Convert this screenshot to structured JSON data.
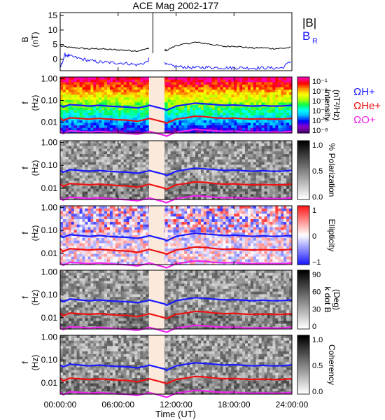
{
  "chart_data": {
    "type": "spectrogram",
    "title": "ACE Mag 2002-177",
    "xlabel": "Time (UT)",
    "xticks": [
      "00:00:00",
      "06:00:00",
      "12:00:00",
      "18:00:00",
      "24:00:00"
    ],
    "xlim_hours": [
      0,
      24
    ],
    "gap_hours": [
      9.2,
      10.8
    ],
    "spike_hour": 9.6,
    "series_colors": {
      "B": "#000000",
      "BR": "#1a1aff",
      "H": "#1a1aff",
      "He": "#ee1111",
      "O": "#ee22ee"
    },
    "panels": [
      {
        "kind": "line",
        "ylabel": "B",
        "yunit": "(nT)",
        "ylim": [
          -4,
          16
        ],
        "yticks": [
          "15",
          "10",
          "5",
          "0"
        ],
        "ytick_values": [
          15,
          10,
          5,
          0
        ],
        "legend": [
          "|B|",
          "B"
        ],
        "legend_sub": "R",
        "series": [
          {
            "name": "|B|",
            "color": "#000000",
            "x": [
              0,
              1,
              2,
              3,
              4,
              5,
              6,
              7,
              8,
              9,
              9.5,
              10,
              10.5,
              11,
              12,
              13,
              14,
              15,
              16,
              17,
              18,
              19,
              20,
              21,
              22,
              23,
              24
            ],
            "y": [
              4.5,
              4.0,
              3.8,
              3.5,
              3.6,
              3.3,
              3.2,
              3.0,
              2.8,
              3.5,
              4.5,
              4.0,
              3.5,
              3.0,
              4.6,
              5.2,
              5.8,
              5.4,
              4.9,
              4.3,
              4.5,
              4.1,
              3.8,
              3.9,
              3.6,
              3.7,
              4.0
            ]
          },
          {
            "name": "BR",
            "color": "#1a1aff",
            "x": [
              0,
              0.5,
              1,
              2,
              3,
              4,
              5,
              6,
              7,
              8,
              9,
              9.5,
              10,
              10.5,
              11,
              12,
              13,
              14,
              15,
              16,
              17,
              18,
              19,
              20,
              21,
              22,
              23,
              24
            ],
            "y": [
              -3,
              1.5,
              1.0,
              0.2,
              -0.5,
              -1.0,
              -1.2,
              -1.3,
              -1.5,
              -2.0,
              -1.0,
              1.5,
              0.5,
              -1.0,
              -2.0,
              -2.5,
              -2.8,
              -3.0,
              -2.8,
              -2.9,
              -3.0,
              -3.0,
              -3.0,
              -3.1,
              -3.0,
              -3.1,
              -3.0,
              -0.5
            ]
          }
        ]
      },
      {
        "kind": "spectrogram",
        "colormap": "rainbow",
        "ylabel": "f",
        "yunit": "(Hz)",
        "yticks": [
          "1.00",
          "0.10",
          "0.01"
        ],
        "colorbar_label": "Intensity",
        "colorbar_unit": "(nT²/Hz)",
        "colorbar_ticks": [
          "10⁻¹",
          "10⁻²",
          "10⁻³",
          "10⁻⁴",
          "10⁻⁶",
          "10⁻⁸"
        ],
        "legend": [
          "ΩH+",
          "ΩHe+",
          "ΩO+"
        ]
      },
      {
        "kind": "spectrogram",
        "colormap": "gray",
        "ylabel": "f",
        "yunit": "(Hz)",
        "yticks": [
          "1.00",
          "0.10",
          "0.01"
        ],
        "colorbar_label": "% Polarization",
        "colorbar_ticks": [
          "1.0",
          "0.5",
          "0.0"
        ]
      },
      {
        "kind": "spectrogram",
        "colormap": "bwr",
        "ylabel": "f",
        "yunit": "(Hz)",
        "yticks": [
          "1.00",
          "0.10",
          "0.01"
        ],
        "colorbar_label": "Ellipticity",
        "colorbar_ticks": [
          "1",
          "0",
          "−1"
        ]
      },
      {
        "kind": "spectrogram",
        "colormap": "gray",
        "ylabel": "f",
        "yunit": "(Hz)",
        "yticks": [
          "1.00",
          "0.10",
          "0.01"
        ],
        "colorbar_label": "k dot B",
        "colorbar_unit": "(Deg)",
        "colorbar_ticks": [
          "90",
          "60",
          "30",
          "0"
        ]
      },
      {
        "kind": "spectrogram",
        "colormap": "gray",
        "ylabel": "f",
        "yunit": "(Hz)",
        "yticks": [
          "1.00",
          "0.10",
          "0.01"
        ],
        "colorbar_label": "Coherency",
        "colorbar_ticks": [
          "1.0",
          "0.5",
          "0.0"
        ]
      }
    ],
    "gyrofrequency_lines": {
      "x": [
        0,
        0.3,
        1,
        2,
        3,
        4,
        5,
        6,
        7,
        8,
        9,
        9.2,
        10.8,
        11,
        12,
        13,
        14,
        15,
        16,
        17,
        18,
        19,
        20,
        21,
        22,
        23,
        24
      ],
      "H": [
        0.06,
        0.05,
        0.065,
        0.06,
        0.055,
        0.06,
        0.055,
        0.052,
        0.05,
        0.045,
        0.055,
        0.06,
        0.04,
        0.035,
        0.055,
        0.065,
        0.075,
        0.07,
        0.065,
        0.06,
        0.062,
        0.058,
        0.055,
        0.058,
        0.055,
        0.056,
        0.06
      ],
      "He": [
        0.016,
        0.012,
        0.016,
        0.015,
        0.014,
        0.015,
        0.014,
        0.013,
        0.0125,
        0.011,
        0.014,
        0.015,
        0.01,
        0.009,
        0.014,
        0.016,
        0.019,
        0.018,
        0.016,
        0.015,
        0.0155,
        0.0145,
        0.014,
        0.0145,
        0.014,
        0.014,
        0.015
      ],
      "O": [
        0.004,
        0.003,
        0.004,
        0.0038,
        0.0035,
        0.0038,
        0.0035,
        0.0033,
        0.0031,
        0.0028,
        0.0035,
        0.0038,
        0.0025,
        0.0023,
        0.0035,
        0.004,
        0.0047,
        0.0044,
        0.004,
        0.0038,
        0.0039,
        0.0036,
        0.0035,
        0.0036,
        0.0035,
        0.0035,
        0.0038
      ]
    }
  }
}
